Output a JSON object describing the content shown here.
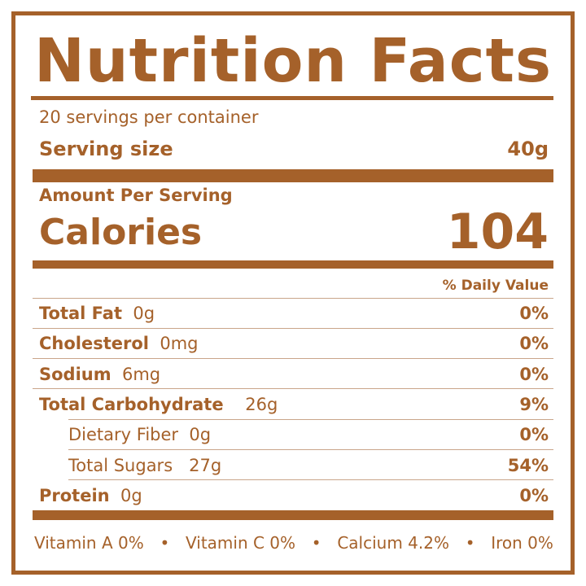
{
  "title": {
    "word1": "Nutrition",
    "word2": "Facts"
  },
  "servings_per_container": "20 servings per container",
  "serving_size": {
    "label": "Serving size",
    "value": "40g"
  },
  "amount_per_serving": "Amount Per Serving",
  "calories": {
    "label": "Calories",
    "value": "104"
  },
  "daily_value_header": "% Daily Value",
  "nutrients": [
    {
      "name": "Total Fat",
      "amount": "0g",
      "dv": "0%"
    },
    {
      "name": "Cholesterol",
      "amount": "0mg",
      "dv": "0%"
    },
    {
      "name": "Sodium",
      "amount": "6mg",
      "dv": "0%"
    },
    {
      "name": "Total Carbohydrate",
      "amount": "26g",
      "dv": "9%"
    },
    {
      "name": "Dietary Fiber",
      "amount": "0g",
      "dv": "0%"
    },
    {
      "name": "Total Sugars",
      "amount": "27g",
      "dv": "54%"
    },
    {
      "name": "Protein",
      "amount": "0g",
      "dv": "0%"
    }
  ],
  "vitamins": [
    "Vitamin A 0%",
    "Vitamin C 0%",
    "Calcium 4.2%",
    "Iron 0%"
  ],
  "separator": "•",
  "colors": {
    "brand": "#a5612a"
  }
}
